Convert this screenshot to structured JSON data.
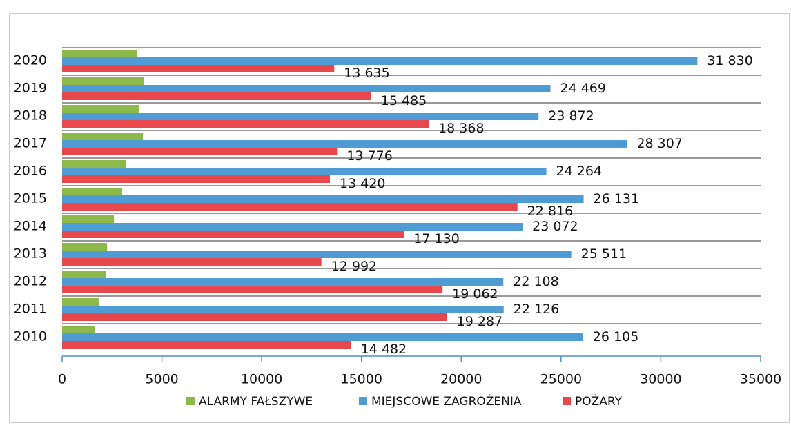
{
  "chart_data": {
    "type": "hbar",
    "categories": [
      "2020",
      "2019",
      "2018",
      "2017",
      "2016",
      "2015",
      "2014",
      "2013",
      "2012",
      "2011",
      "2010"
    ],
    "series": [
      {
        "name": "ALARMY FAŁSZYWE",
        "color": "#8db84a",
        "values": [
          3740,
          4080,
          3870,
          4050,
          3220,
          3010,
          2600,
          2250,
          2180,
          1830,
          1660
        ]
      },
      {
        "name": "MIEJSCOWE ZAGROŻENIA",
        "color": "#4f9bd3",
        "values": [
          31830,
          24469,
          23872,
          28307,
          24264,
          26131,
          23072,
          25511,
          22108,
          22126,
          26105
        ],
        "value_labels": [
          "31 830",
          "24 469",
          "23 872",
          "28 307",
          "24 264",
          "26 131",
          "23 072",
          "25 511",
          "22 108",
          "22 126",
          "26 105"
        ]
      },
      {
        "name": "POŻARY",
        "color": "#e8474b",
        "values": [
          13635,
          15485,
          18368,
          13776,
          13420,
          22816,
          17130,
          12992,
          19062,
          19287,
          14482
        ],
        "value_labels": [
          "13 635",
          "15 485",
          "18 368",
          "13 776",
          "13 420",
          "22 816",
          "17 130",
          "12 992",
          "19 062",
          "19 287",
          "14 482"
        ]
      }
    ],
    "xlim": [
      0,
      35000
    ],
    "xticks": [
      0,
      5000,
      10000,
      15000,
      20000,
      25000,
      30000,
      35000
    ],
    "legend": "bottom"
  }
}
